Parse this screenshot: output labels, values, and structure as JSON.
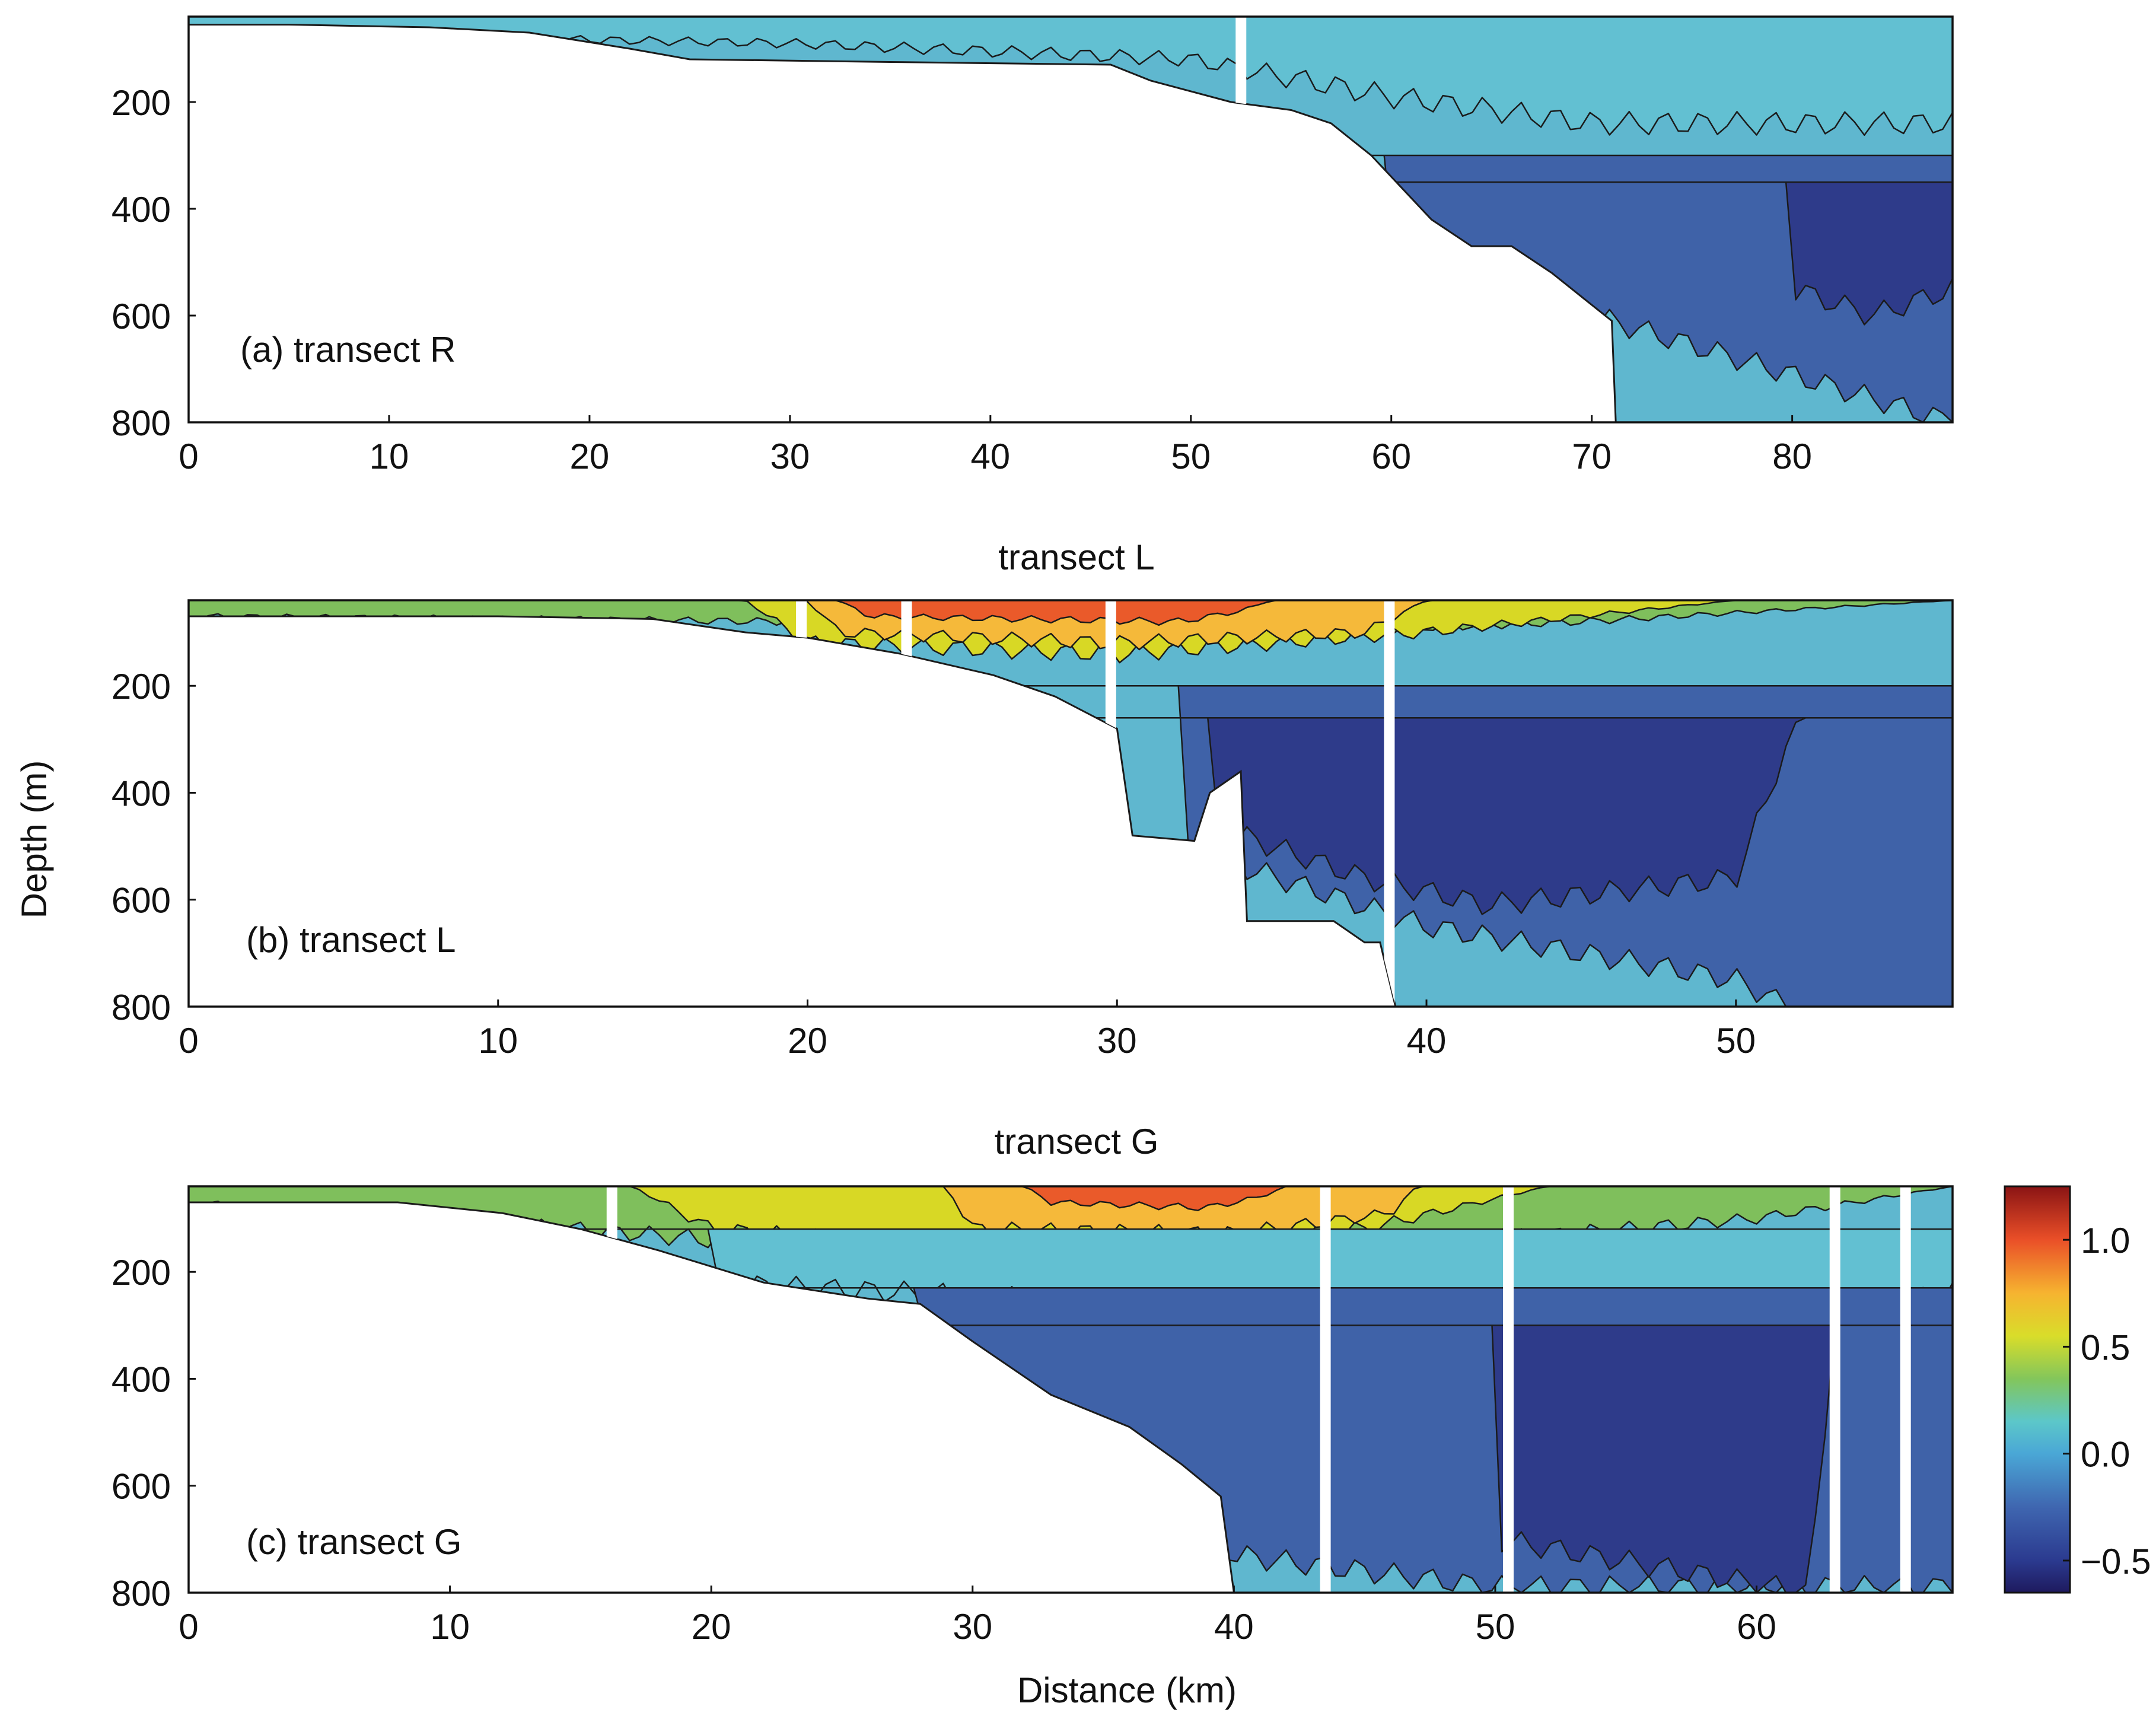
{
  "figure": {
    "ylabel": "Depth (m)",
    "xlabel": "Distance (km)"
  },
  "chart_data": [
    {
      "type": "heatmap",
      "panel_label": "(a) transect R",
      "title": "",
      "xlim": [
        0,
        88
      ],
      "ylim": [
        40,
        800
      ],
      "x_ticks": [
        0,
        10,
        20,
        30,
        40,
        50,
        60,
        70,
        80
      ],
      "y_ticks": [
        200,
        400,
        600,
        800
      ],
      "bathymetry": [
        [
          0,
          55
        ],
        [
          5,
          55
        ],
        [
          12,
          60
        ],
        [
          17,
          70
        ],
        [
          22,
          100
        ],
        [
          25,
          120
        ],
        [
          35,
          125
        ],
        [
          46,
          130
        ],
        [
          48,
          160
        ],
        [
          52,
          200
        ],
        [
          55,
          215
        ],
        [
          57,
          240
        ],
        [
          59,
          300
        ],
        [
          62,
          420
        ],
        [
          64,
          470
        ],
        [
          66,
          470
        ],
        [
          68,
          520
        ],
        [
          71,
          610
        ],
        [
          71.2,
          800
        ]
      ],
      "gaps_km": [
        52.5
      ],
      "layers": [
        {
          "band": "0.25-0.5",
          "color": "#7fbf5c",
          "top": 40,
          "thick": [
            [
              0,
              10
            ],
            [
              30,
              25
            ],
            [
              45,
              55
            ],
            [
              55,
              60
            ],
            [
              65,
              50
            ],
            [
              75,
              50
            ],
            [
              88,
              50
            ]
          ]
        },
        {
          "band": "0.5-0.75",
          "color": "#d8d825",
          "top": 40,
          "thick": [
            [
              0,
              0
            ],
            [
              40,
              0
            ],
            [
              50,
              15
            ],
            [
              60,
              25
            ],
            [
              70,
              30
            ],
            [
              80,
              40
            ],
            [
              88,
              40
            ]
          ]
        },
        {
          "band": "0.0-0.25",
          "color": "#62c0d2",
          "top": 40,
          "thick": [
            [
              0,
              30
            ],
            [
              30,
              50
            ],
            [
              50,
              80
            ],
            [
              60,
              150
            ],
            [
              70,
              200
            ],
            [
              88,
              200
            ]
          ]
        },
        {
          "band": "-0.25-0.0",
          "color": "#3f62a8",
          "top": 300,
          "thick": [
            [
              60,
              200
            ],
            [
              70,
              300
            ],
            [
              88,
              500
            ]
          ]
        },
        {
          "band": "-0.5--0.25",
          "color": "#2e3b8a",
          "top": 350,
          "thick": [
            [
              80,
              200
            ],
            [
              84,
              250
            ],
            [
              88,
              200
            ]
          ]
        }
      ]
    },
    {
      "type": "heatmap",
      "panel_label": "(b) transect L",
      "title": "transect L",
      "xlim": [
        0,
        57
      ],
      "ylim": [
        40,
        800
      ],
      "x_ticks": [
        0,
        10,
        20,
        30,
        40,
        50
      ],
      "y_ticks": [
        200,
        400,
        600,
        800
      ],
      "bathymetry": [
        [
          0,
          70
        ],
        [
          10,
          70
        ],
        [
          15,
          75
        ],
        [
          18,
          100
        ],
        [
          20,
          110
        ],
        [
          23,
          140
        ],
        [
          26,
          180
        ],
        [
          28,
          220
        ],
        [
          30,
          280
        ],
        [
          30.5,
          480
        ],
        [
          32.5,
          490
        ],
        [
          33,
          400
        ],
        [
          34,
          360
        ],
        [
          34.2,
          640
        ],
        [
          37,
          640
        ],
        [
          38,
          680
        ],
        [
          38.5,
          680
        ],
        [
          39,
          800
        ]
      ],
      "gaps_km": [
        19.8,
        23.2,
        29.8,
        38.8
      ],
      "layers": [
        {
          "band": "0.25-0.5",
          "color": "#7fbf5c",
          "top": 40,
          "thick": [
            [
              0,
              30
            ],
            [
              20,
              40
            ],
            [
              35,
              60
            ],
            [
              45,
              40
            ],
            [
              57,
              0
            ]
          ]
        },
        {
          "band": "0.5-0.75",
          "color": "#d8d825",
          "top": 40,
          "thick": [
            [
              18,
              0
            ],
            [
              20,
              80
            ],
            [
              30,
              100
            ],
            [
              40,
              60
            ],
            [
              45,
              30
            ],
            [
              50,
              0
            ]
          ]
        },
        {
          "band": "0.75-1.0",
          "color": "#f5b93a",
          "top": 40,
          "thick": [
            [
              20,
              0
            ],
            [
              21,
              60
            ],
            [
              30,
              80
            ],
            [
              38,
              60
            ],
            [
              40,
              0
            ]
          ]
        },
        {
          "band": "1.0-1.25",
          "color": "#ea5a2a",
          "top": 40,
          "thick": [
            [
              21,
              0
            ],
            [
              22,
              30
            ],
            [
              32,
              40
            ],
            [
              34,
              20
            ],
            [
              35,
              0
            ]
          ]
        },
        {
          "band": "-0.25-0.0",
          "color": "#3f62a8",
          "top": 200,
          "thick": [
            [
              32,
              300
            ],
            [
              40,
              450
            ],
            [
              50,
              550
            ],
            [
              57,
              760
            ]
          ]
        },
        {
          "band": "-0.5--0.25",
          "color": "#2e3b8a",
          "top": 260,
          "thick": [
            [
              33,
              200
            ],
            [
              38,
              300
            ],
            [
              42,
              350
            ],
            [
              50,
              300
            ],
            [
              52,
              0
            ]
          ]
        }
      ]
    },
    {
      "type": "heatmap",
      "panel_label": "(c) transect G",
      "title": "transect G",
      "xlim": [
        0,
        67.5
      ],
      "ylim": [
        40,
        800
      ],
      "x_ticks": [
        0,
        10,
        20,
        30,
        40,
        50,
        60
      ],
      "y_ticks": [
        200,
        400,
        600,
        800
      ],
      "bathymetry": [
        [
          0,
          70
        ],
        [
          8,
          70
        ],
        [
          12,
          90
        ],
        [
          15,
          120
        ],
        [
          18,
          160
        ],
        [
          22,
          220
        ],
        [
          26,
          250
        ],
        [
          28,
          260
        ],
        [
          30,
          330
        ],
        [
          33,
          430
        ],
        [
          36,
          490
        ],
        [
          38,
          560
        ],
        [
          39.5,
          620
        ],
        [
          40,
          800
        ]
      ],
      "gaps_km": [
        16.2,
        43.5,
        50.5,
        63.0,
        65.7
      ],
      "layers": [
        {
          "band": "0.25-0.5",
          "color": "#7fbf5c",
          "top": 40,
          "thick": [
            [
              0,
              30
            ],
            [
              15,
              80
            ],
            [
              30,
              140
            ],
            [
              45,
              120
            ],
            [
              60,
              60
            ],
            [
              67.5,
              0
            ]
          ]
        },
        {
          "band": "0.5-0.75",
          "color": "#d8d825",
          "top": 40,
          "thick": [
            [
              17,
              0
            ],
            [
              20,
              80
            ],
            [
              30,
              120
            ],
            [
              45,
              80
            ],
            [
              52,
              0
            ]
          ]
        },
        {
          "band": "0.75-1.0",
          "color": "#f5b93a",
          "top": 40,
          "thick": [
            [
              29,
              0
            ],
            [
              30,
              80
            ],
            [
              40,
              90
            ],
            [
              46,
              50
            ],
            [
              47,
              0
            ]
          ]
        },
        {
          "band": "1.0-1.25",
          "color": "#ea5a2a",
          "top": 40,
          "thick": [
            [
              32,
              0
            ],
            [
              33,
              30
            ],
            [
              39,
              40
            ],
            [
              41,
              20
            ],
            [
              42,
              0
            ]
          ]
        },
        {
          "band": "0.0-0.25",
          "color": "#62c0d2",
          "top": 120,
          "thick": [
            [
              20,
              100
            ],
            [
              40,
              150
            ],
            [
              55,
              200
            ],
            [
              62,
              150
            ],
            [
              67.5,
              120
            ]
          ]
        },
        {
          "band": "-0.25-0.0",
          "color": "#3f62a8",
          "top": 230,
          "thick": [
            [
              28,
              80
            ],
            [
              40,
              500
            ],
            [
              50,
              560
            ],
            [
              67.5,
              560
            ]
          ]
        },
        {
          "band": "-0.5--0.25",
          "color": "#2e3b8a",
          "top": 300,
          "thick": [
            [
              50,
              400
            ],
            [
              62,
              500
            ],
            [
              63,
              0
            ]
          ]
        }
      ]
    }
  ],
  "colorbar": {
    "ticks": [
      "1.0",
      "0.5",
      "0.0",
      "−0.5"
    ],
    "tick_values": [
      1.0,
      0.5,
      0.0,
      -0.5
    ],
    "range": [
      -0.65,
      1.25
    ],
    "stops": [
      {
        "v": -0.65,
        "c": "#1e1a5e"
      },
      {
        "v": -0.5,
        "c": "#2b3a8f"
      },
      {
        "v": -0.25,
        "c": "#3f66b0"
      },
      {
        "v": 0.0,
        "c": "#4aa7d6"
      },
      {
        "v": 0.15,
        "c": "#5cc7c9"
      },
      {
        "v": 0.35,
        "c": "#83c65b"
      },
      {
        "v": 0.55,
        "c": "#d9dd2a"
      },
      {
        "v": 0.75,
        "c": "#f6b430"
      },
      {
        "v": 1.0,
        "c": "#ea4f28"
      },
      {
        "v": 1.25,
        "c": "#8a1414"
      }
    ]
  },
  "colors": {
    "shelf_water": "#5fb7cf",
    "deep_water": "#3d5ea6",
    "contour_line": "#1b1b1b"
  }
}
